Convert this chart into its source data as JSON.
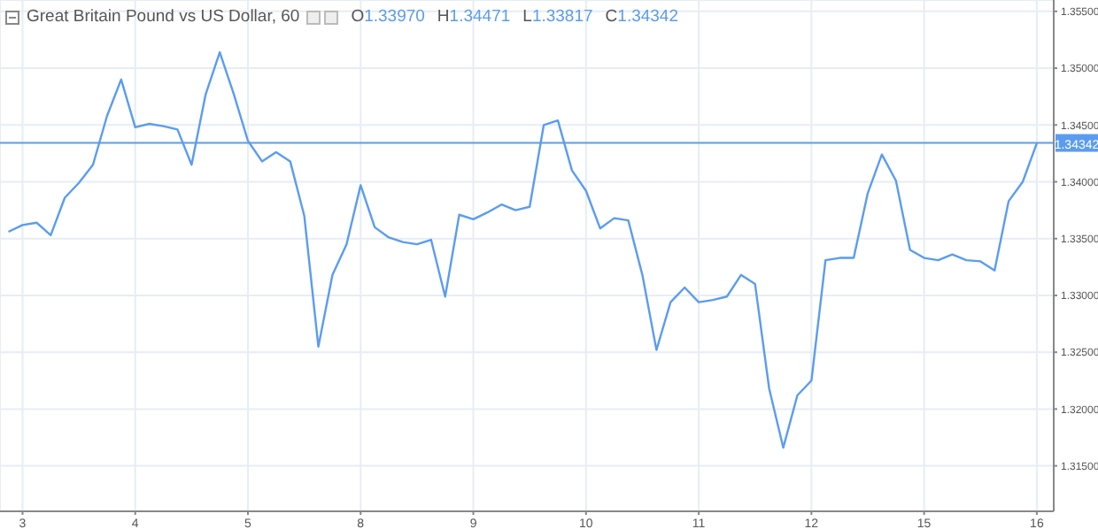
{
  "chart_data": {
    "type": "line",
    "title": "Great Britain Pound vs US Dollar, 60",
    "annotations": [
      "O1.33970",
      "H1.34471",
      "L1.33817",
      "C1.34342"
    ],
    "categories": [
      null,
      "3",
      null,
      null,
      null,
      null,
      null,
      null,
      null,
      "4",
      null,
      null,
      null,
      null,
      null,
      null,
      null,
      "5",
      null,
      null,
      null,
      null,
      null,
      null,
      null,
      "8",
      null,
      null,
      null,
      null,
      null,
      null,
      null,
      "9",
      null,
      null,
      null,
      null,
      null,
      null,
      null,
      "10",
      null,
      null,
      null,
      null,
      null,
      null,
      null,
      "11",
      null,
      null,
      null,
      null,
      null,
      null,
      null,
      "12",
      null,
      null,
      null,
      null,
      null,
      null,
      null,
      "15",
      null,
      null,
      null,
      null,
      null,
      null,
      null,
      "16"
    ],
    "series": [
      {
        "color": "#5b9cf0",
        "values": [
          1.3356,
          1.3362,
          1.3364,
          1.3353,
          1.3386,
          1.3399,
          1.3415,
          1.3458,
          1.349,
          1.3448,
          1.3451,
          1.3449,
          1.3446,
          1.3415,
          1.3477,
          1.3514,
          1.3477,
          1.3436,
          1.3418,
          1.3426,
          1.3418,
          1.337,
          1.3255,
          1.3318,
          1.3345,
          1.3397,
          1.336,
          1.3351,
          1.3347,
          1.3345,
          1.3349,
          1.3299,
          1.3371,
          1.3367,
          1.3373,
          1.338,
          1.3375,
          1.3378,
          1.345,
          1.3454,
          1.341,
          1.3392,
          1.3359,
          1.3368,
          1.3366,
          1.3318,
          1.3252,
          1.3294,
          1.3307,
          1.3294,
          1.3296,
          1.3299,
          1.3318,
          1.331,
          1.3218,
          1.3166,
          1.3212,
          1.3225,
          1.3331,
          1.3333,
          1.3333,
          1.339,
          1.3424,
          1.3401,
          1.334,
          1.3333,
          1.3331,
          1.3336,
          1.3331,
          1.333,
          1.3322,
          1.3383,
          1.34,
          1.3434
        ]
      }
    ],
    "ylim": [
      1.311,
      1.356
    ],
    "yticks": [
      {
        "value": 1.315,
        "label": "1.31500"
      },
      {
        "value": 1.32,
        "label": "1.32000"
      },
      {
        "value": 1.325,
        "label": "1.32500"
      },
      {
        "value": 1.33,
        "label": "1.33000"
      },
      {
        "value": 1.335,
        "label": "1.33500"
      },
      {
        "value": 1.34,
        "label": "1.34000"
      },
      {
        "value": 1.345,
        "label": "1.34500"
      },
      {
        "value": 1.35,
        "label": "1.35000"
      },
      {
        "value": 1.355,
        "label": "1.35500"
      }
    ],
    "ref_lines": [
      {
        "axis": "y",
        "value": 1.34342,
        "label": "1.34342",
        "color": "#5b9cf0"
      }
    ],
    "grid": true,
    "marker": "none",
    "line_style": "solid"
  }
}
